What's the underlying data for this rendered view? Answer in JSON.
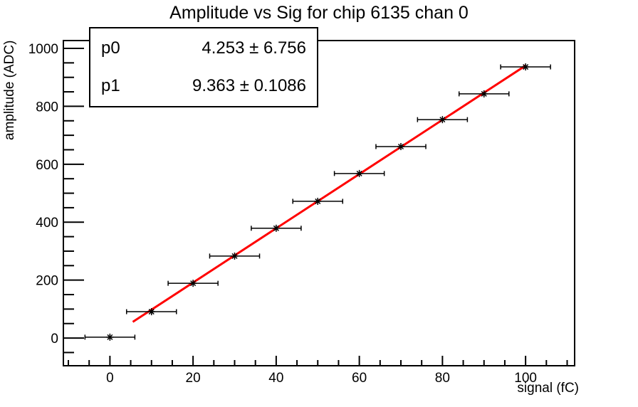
{
  "title": "Amplitude vs Sig for chip 6135 chan 0",
  "stats": {
    "rows": [
      {
        "name": "p0",
        "text": "4.253 ± 6.756"
      },
      {
        "name": "p1",
        "text": "9.363 ± 0.1086"
      }
    ]
  },
  "chart_data": {
    "type": "scatter",
    "title": "Amplitude vs Sig for chip 6135 chan 0",
    "xlabel": "signal (fC)",
    "ylabel": "amplitude (ADC)",
    "x_range": [
      -11.2,
      111.8
    ],
    "y_range": [
      -95.6,
      1027
    ],
    "x_major_ticks": [
      0,
      20,
      40,
      60,
      80,
      100
    ],
    "x_minor_step": 5,
    "y_major_ticks": [
      0,
      200,
      400,
      600,
      800,
      1000
    ],
    "y_minor_step": 50,
    "x": [
      0,
      10,
      20,
      30,
      40,
      50,
      60,
      70,
      80,
      90,
      100
    ],
    "y": [
      3,
      91,
      189,
      283,
      379,
      472,
      568,
      661,
      754,
      843,
      936
    ],
    "x_err": 1.5,
    "marker": {
      "style": "asterisk",
      "color": "#000000"
    },
    "fit": {
      "name": "pol1",
      "p0": 4.253,
      "p1": 9.363,
      "x_min": 5.5,
      "x_max": 100,
      "color": "#ff0000"
    },
    "grid": false,
    "legend_position": "top-left-stats-box",
    "axis_color": "#000000",
    "background_color": "#ffffff"
  }
}
